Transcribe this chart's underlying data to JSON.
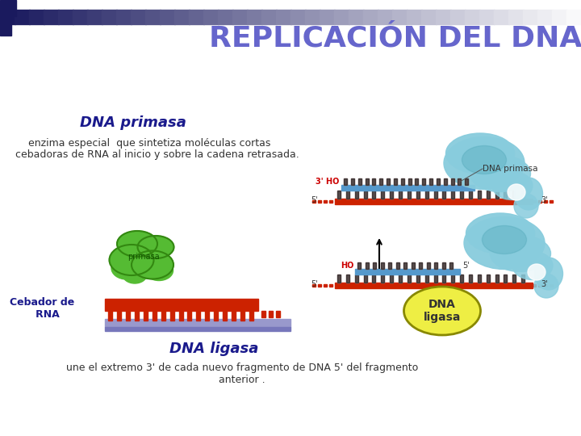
{
  "title": "REPLICACIÓN DEL DNA",
  "title_color": "#6666cc",
  "title_fontsize": 26,
  "bg_color": "#ffffff",
  "section1_heading": "DNA primasa",
  "section1_heading_color": "#1a1a8c",
  "section1_text_line1": "enzima especial  que sintetiza moléculas cortas",
  "section1_text_line2": "cebadoras de RNA al inicio y sobre la cadena retrasada.",
  "section1_text_color": "#333333",
  "section1_text_fontsize": 9,
  "dna_primasa_label": "DNA primasa",
  "section2_heading": "DNA ligasa",
  "section2_heading_color": "#1a1a8c",
  "section2_text_line1": "une el extremo 3' de cada nuevo fragmento de DNA 5' del fragmento",
  "section2_text_line2": "anterior .",
  "section2_text_color": "#333333",
  "section2_text_fontsize": 9,
  "cebador_label": "Cebador de\n   RNA",
  "primasa_label": "primasa",
  "dna_ligasa_label": "DNA\nligasa",
  "red_strand_color": "#cc2200",
  "primer_color": "#5599cc",
  "enzyme_color": "#88ccdd",
  "enzyme_dark": "#55aabb",
  "primase_enzyme_color": "#55bb33",
  "primase_enzyme_dark": "#338811",
  "rna_primer_bar_color": "#cc2200",
  "rna_primer_base_color": "#9999cc",
  "rna_primer_base_dark": "#7777bb",
  "ligase_ellipse_color": "#eeee44",
  "ligase_ellipse_edge": "#888800",
  "ho_color": "#cc0000",
  "dash_color": "#cc2200",
  "tooth_color": "#111111",
  "pink_tooth_color": "#ddaaaa",
  "label_color": "#333333"
}
